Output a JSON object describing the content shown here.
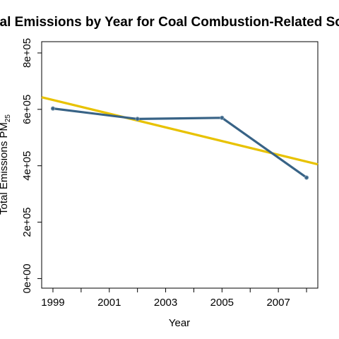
{
  "chart_data": {
    "type": "line",
    "title": "Total Emissions by Year for Coal Combustion-Related Sources",
    "xlabel": "Year",
    "ylabel": "Total Emissions PM",
    "ylabel_subscript": "25",
    "x_ticks": [
      "1999",
      "2001",
      "2003",
      "2005",
      "2007"
    ],
    "y_ticks": [
      "0e+00",
      "2e+05",
      "4e+05",
      "6e+05",
      "8e+05"
    ],
    "xlim": [
      1998.6,
      2008.4
    ],
    "ylim": [
      -34000.0,
      840000.0
    ],
    "grid": false,
    "series": [
      {
        "x": [
          1999,
          2002,
          2005,
          2008
        ],
        "y": [
          603000,
          566000,
          570000,
          358000
        ],
        "color": "#386386"
      }
    ],
    "trend_line": {
      "x": [
        1998.6,
        2008.4
      ],
      "y": [
        643000,
        405000
      ],
      "color": "#e8c200"
    }
  }
}
